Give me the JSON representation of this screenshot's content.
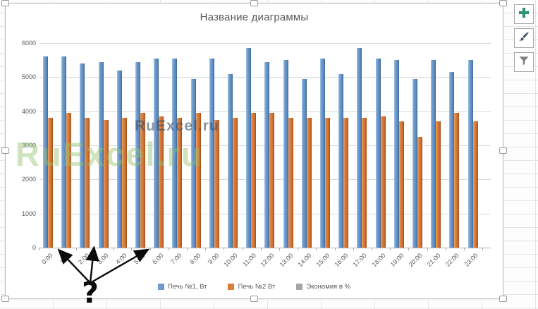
{
  "chart_data": {
    "type": "bar",
    "title": "Название диаграммы",
    "categories": [
      "0:00",
      "1:00",
      "2:00",
      "3:00",
      "4:00",
      "5:00",
      "6:00",
      "7:00",
      "8:00",
      "9:00",
      "10:00",
      "11:00",
      "12:00",
      "13:00",
      "14:00",
      "15:00",
      "16:00",
      "17:00",
      "18:00",
      "19:00",
      "20:00",
      "21:00",
      "22:00",
      "23:00"
    ],
    "series": [
      {
        "name": "Печь №1, Вт",
        "color": "#6f9cd0",
        "values": [
          5600,
          5600,
          5400,
          5450,
          5200,
          5450,
          5550,
          5550,
          4950,
          5550,
          5100,
          5850,
          5450,
          5500,
          4950,
          5550,
          5100,
          5850,
          5550,
          5500,
          4950,
          5500,
          5150,
          5500
        ]
      },
      {
        "name": "Печь №2 Вт",
        "color": "#dd7d39",
        "values": [
          3800,
          3950,
          3800,
          3750,
          3800,
          3950,
          3850,
          3800,
          3950,
          3750,
          3800,
          3950,
          3950,
          3800,
          3800,
          3800,
          3800,
          3800,
          3850,
          3700,
          3250,
          3700,
          3950,
          3700
        ]
      },
      {
        "name": "Экономия в %",
        "color": "#a6a6a6",
        "values": [],
        "note": "bars too small to be visible at this axis scale"
      }
    ],
    "ylim": [
      0,
      6000
    ],
    "yticks": [
      0,
      1000,
      2000,
      3000,
      4000,
      5000,
      6000
    ],
    "grid": true,
    "legend_position": "bottom",
    "xlabel_rotation_deg": 45
  },
  "watermarks": {
    "large": "RuExcel.ru",
    "small": "RuExcel.ru"
  },
  "annotation": {
    "symbol": "?"
  },
  "side_buttons": [
    {
      "icon": "plus-icon"
    },
    {
      "icon": "brush-icon"
    },
    {
      "icon": "funnel-icon"
    }
  ]
}
